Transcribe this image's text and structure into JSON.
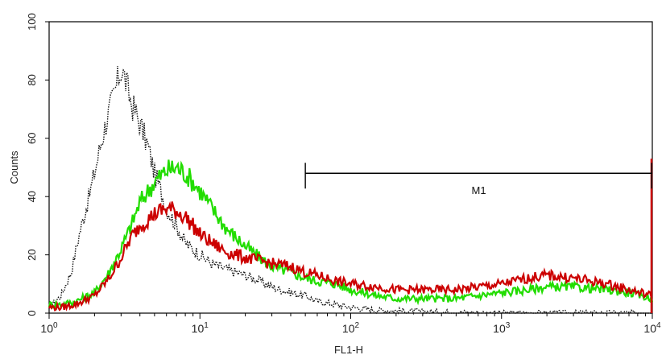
{
  "chart_data": {
    "type": "line",
    "title": "",
    "xlabel": "FL1-H",
    "ylabel": "Counts",
    "x_scale": "log",
    "xlim": [
      1,
      10000
    ],
    "ylim": [
      0,
      100
    ],
    "x_ticks": [
      {
        "value": 1,
        "base": "10",
        "exp": "0"
      },
      {
        "value": 10,
        "base": "10",
        "exp": "1"
      },
      {
        "value": 100,
        "base": "10",
        "exp": "2"
      },
      {
        "value": 1000,
        "base": "10",
        "exp": "3"
      },
      {
        "value": 10000,
        "base": "10",
        "exp": "4"
      }
    ],
    "y_ticks": [
      "0",
      "20",
      "40",
      "60",
      "80",
      "100"
    ],
    "grid": false,
    "legend": "none",
    "gate": {
      "label": "M1",
      "x_start": 50,
      "x_end": 10000,
      "y": 48
    },
    "series": [
      {
        "style": "dotted",
        "color": "#111111",
        "points": [
          [
            1,
            2
          ],
          [
            1.2,
            6
          ],
          [
            1.4,
            14
          ],
          [
            1.6,
            28
          ],
          [
            1.8,
            38
          ],
          [
            2,
            48
          ],
          [
            2.2,
            58
          ],
          [
            2.4,
            66
          ],
          [
            2.6,
            72
          ],
          [
            2.8,
            78
          ],
          [
            3,
            84
          ],
          [
            3.2,
            80
          ],
          [
            3.5,
            72
          ],
          [
            3.8,
            68
          ],
          [
            4.2,
            62
          ],
          [
            4.6,
            56
          ],
          [
            5,
            48
          ],
          [
            5.5,
            42
          ],
          [
            6,
            36
          ],
          [
            7,
            30
          ],
          [
            8,
            24
          ],
          [
            10,
            20
          ],
          [
            12,
            17
          ],
          [
            15,
            15
          ],
          [
            20,
            13
          ],
          [
            25,
            11
          ],
          [
            30,
            9
          ],
          [
            40,
            7
          ],
          [
            50,
            6
          ],
          [
            60,
            4
          ],
          [
            80,
            3
          ],
          [
            100,
            2
          ],
          [
            150,
            1
          ],
          [
            300,
            0.5
          ],
          [
            1000,
            0
          ],
          [
            10000,
            0
          ]
        ]
      },
      {
        "style": "solid",
        "color": "#22dd00",
        "points": [
          [
            1,
            3
          ],
          [
            1.2,
            3
          ],
          [
            1.5,
            4
          ],
          [
            2,
            7
          ],
          [
            2.5,
            14
          ],
          [
            3,
            22
          ],
          [
            3.5,
            30
          ],
          [
            4,
            38
          ],
          [
            5,
            45
          ],
          [
            6,
            49
          ],
          [
            7,
            50
          ],
          [
            8,
            48
          ],
          [
            9,
            45
          ],
          [
            10,
            42
          ],
          [
            12,
            36
          ],
          [
            15,
            29
          ],
          [
            20,
            23
          ],
          [
            25,
            19
          ],
          [
            30,
            16
          ],
          [
            40,
            14
          ],
          [
            50,
            12
          ],
          [
            60,
            11
          ],
          [
            80,
            10
          ],
          [
            100,
            8
          ],
          [
            150,
            6
          ],
          [
            200,
            5
          ],
          [
            300,
            5
          ],
          [
            500,
            5
          ],
          [
            700,
            6
          ],
          [
            1000,
            7
          ],
          [
            1500,
            8
          ],
          [
            2000,
            9
          ],
          [
            3000,
            9
          ],
          [
            5000,
            8
          ],
          [
            7000,
            7
          ],
          [
            10000,
            5
          ]
        ]
      },
      {
        "style": "solid",
        "color": "#cc0000",
        "points": [
          [
            1,
            2
          ],
          [
            1.2,
            2
          ],
          [
            1.5,
            3
          ],
          [
            2,
            6
          ],
          [
            2.5,
            12
          ],
          [
            3,
            19
          ],
          [
            3.5,
            26
          ],
          [
            4,
            30
          ],
          [
            5,
            34
          ],
          [
            6,
            36
          ],
          [
            7,
            35
          ],
          [
            8,
            33
          ],
          [
            9,
            30
          ],
          [
            10,
            27
          ],
          [
            12,
            24
          ],
          [
            15,
            21
          ],
          [
            20,
            19
          ],
          [
            25,
            18
          ],
          [
            30,
            17
          ],
          [
            40,
            16
          ],
          [
            50,
            14
          ],
          [
            60,
            13
          ],
          [
            80,
            11
          ],
          [
            100,
            10
          ],
          [
            150,
            9
          ],
          [
            200,
            8
          ],
          [
            300,
            8
          ],
          [
            500,
            8
          ],
          [
            700,
            9
          ],
          [
            1000,
            10
          ],
          [
            1500,
            12
          ],
          [
            2000,
            13
          ],
          [
            3000,
            12
          ],
          [
            5000,
            10
          ],
          [
            7000,
            8
          ],
          [
            10000,
            6
          ]
        ]
      }
    ]
  }
}
